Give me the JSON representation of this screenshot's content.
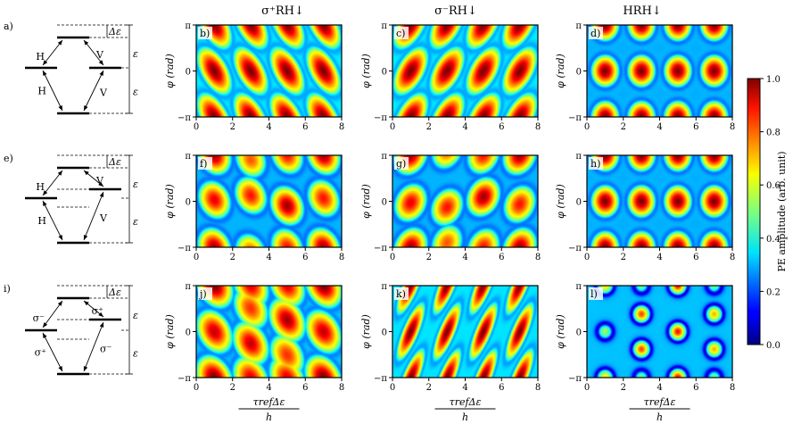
{
  "column_titles": [
    "σ⁺RH↓",
    "σ⁻RH↓",
    "HRH↓"
  ],
  "row_labels": [
    "a)",
    "e)",
    "i)"
  ],
  "panel_labels": [
    "b)",
    "c)",
    "d)",
    "f)",
    "g)",
    "h)",
    "j)",
    "k)",
    "l)"
  ],
  "ylabel": "φ (rad)",
  "xlabel_num": "τrefΔε",
  "xlabel_den": "h",
  "xticks": [
    "0",
    "2",
    "4",
    "6",
    "8"
  ],
  "yticks": [
    "π",
    "0",
    "−π"
  ],
  "colorbar": {
    "label": "PE amplitude (arb. unit)",
    "ticks": [
      "0.0",
      "0.2",
      "0.4",
      "0.6",
      "0.8",
      "1.0"
    ],
    "range": [
      0,
      1
    ],
    "colormap": "jet"
  },
  "diagrams": [
    {
      "labels": [
        "H",
        "H",
        "V",
        "V"
      ],
      "energy_labels": [
        "Δε",
        "ε",
        "ε"
      ]
    },
    {
      "labels": [
        "H",
        "H",
        "V",
        "V"
      ],
      "energy_labels": [
        "Δε",
        "ε",
        "ε"
      ]
    },
    {
      "labels": [
        "σ⁻",
        "σ⁺",
        "σ⁺",
        "σ⁻"
      ],
      "energy_labels": [
        "Δε",
        "ε",
        "ε"
      ]
    }
  ],
  "chart_data": {
    "type": "heatmap",
    "x_range": [
      0,
      8
    ],
    "y_range": [
      "−π",
      "π"
    ],
    "z_range": [
      0,
      1
    ]
  }
}
